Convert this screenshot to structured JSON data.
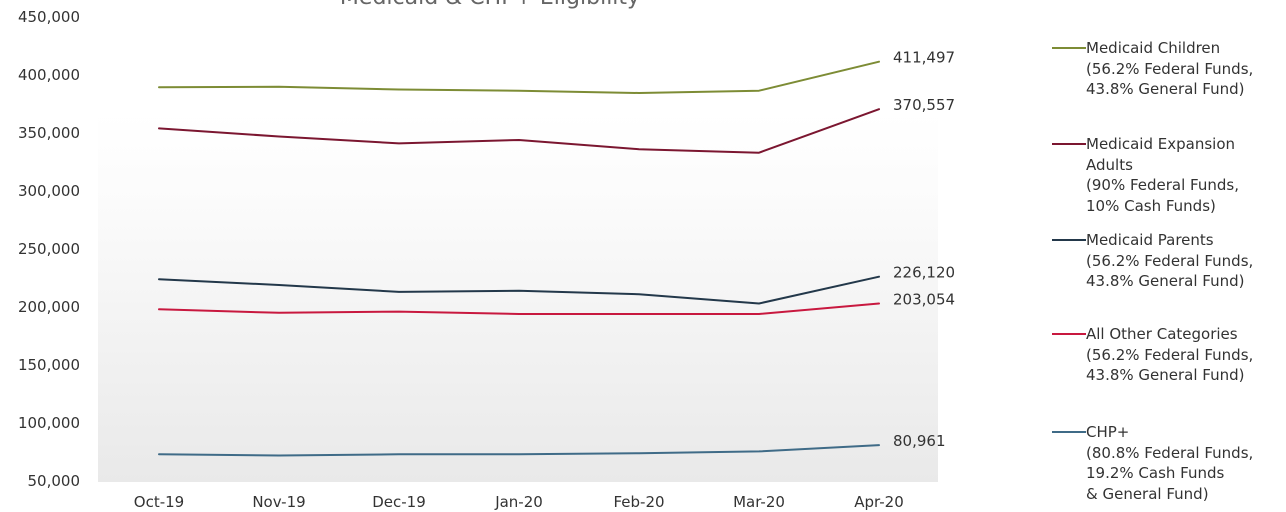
{
  "chart_data": {
    "type": "line",
    "title": "Medicaid & CHP+ Eligibility",
    "categories": [
      "Oct-19",
      "Nov-19",
      "Dec-19",
      "Jan-20",
      "Feb-20",
      "Mar-20",
      "Apr-20"
    ],
    "ylim": [
      50000,
      450000
    ],
    "yticks": [
      "50,000",
      "100,000",
      "150,000",
      "200,000",
      "250,000",
      "300,000",
      "350,000",
      "400,000",
      "450,000"
    ],
    "grid": false,
    "legend_position": "right",
    "series": [
      {
        "name": "Medicaid Children",
        "legend_lines": [
          "Medicaid Children",
          "(56.2% Federal Funds,",
          "43.8% General Fund)"
        ],
        "color": "#7d8c35",
        "values": [
          389500,
          389800,
          387500,
          386500,
          384500,
          386500,
          411497
        ],
        "end_label": "411,497"
      },
      {
        "name": "Medicaid Expansion Adults",
        "legend_lines": [
          "Medicaid Expansion",
          "Adults",
          "(90% Federal Funds,",
          "10% Cash Funds)"
        ],
        "color": "#7b1630",
        "values": [
          354000,
          347000,
          341000,
          344000,
          336000,
          333000,
          370557
        ],
        "end_label": "370,557"
      },
      {
        "name": "Medicaid Parents",
        "legend_lines": [
          "Medicaid Parents",
          "(56.2% Federal Funds,",
          "43.8% General Fund)"
        ],
        "color": "#23384a",
        "values": [
          224000,
          219000,
          213000,
          214000,
          211000,
          203000,
          226120
        ],
        "end_label": "226,120"
      },
      {
        "name": "All Other Categories",
        "legend_lines": [
          "All Other Categories",
          "(56.2% Federal Funds,",
          "43.8% General Fund)"
        ],
        "color": "#c8183f",
        "values": [
          198000,
          195000,
          196000,
          194000,
          194000,
          194000,
          203054
        ],
        "end_label": "203,054"
      },
      {
        "name": "CHP+",
        "legend_lines": [
          "CHP+",
          "(80.8% Federal Funds,",
          "19.2% Cash Funds",
          "& General Fund)"
        ],
        "color": "#3f6b87",
        "values": [
          73000,
          72000,
          73000,
          73000,
          74000,
          75500,
          80961
        ],
        "end_label": "80,961"
      }
    ]
  }
}
